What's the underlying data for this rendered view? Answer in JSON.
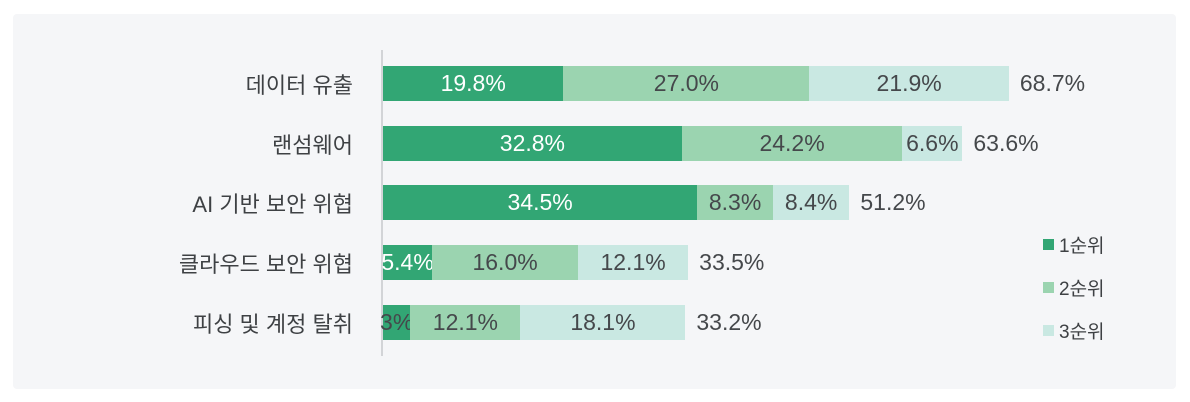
{
  "chart_data": {
    "type": "bar",
    "subtype": "horizontal-stacked",
    "categories": [
      "데이터 유출",
      "랜섬웨어",
      "AI 기반 보안 위협",
      "클라우드 보안 위협",
      "피싱 및 계정 탈취"
    ],
    "series": [
      {
        "name": "1순위",
        "color": "#32a674",
        "values": [
          19.8,
          32.8,
          34.5,
          5.4,
          3.0
        ],
        "labels": [
          "19.8%",
          "32.8%",
          "34.5%",
          "5.4%",
          "3%"
        ]
      },
      {
        "name": "2순위",
        "color": "#9bd4b0",
        "values": [
          27.0,
          24.2,
          8.3,
          16.0,
          12.1
        ],
        "labels": [
          "27.0%",
          "24.2%",
          "8.3%",
          "16.0%",
          "12.1%"
        ]
      },
      {
        "name": "3순위",
        "color": "#c9e8e2",
        "values": [
          21.9,
          6.6,
          8.4,
          12.1,
          18.1
        ],
        "labels": [
          "21.9%",
          "6.6%",
          "8.4%",
          "12.1%",
          "18.1%"
        ]
      }
    ],
    "totals": [
      68.7,
      63.6,
      51.2,
      33.5,
      33.2
    ],
    "total_labels": [
      "68.7%",
      "63.6%",
      "51.2%",
      "33.5%",
      "33.2%"
    ],
    "title": "",
    "xlabel": "",
    "ylabel": "",
    "xlim": [
      0,
      100
    ],
    "grid": false,
    "legend_position": "right",
    "colors": {
      "card_background": "#f5f6f8",
      "page_background": "#ffffff",
      "axis_line": "#d2d4d7",
      "label_text": "#3e4144",
      "value_text_dark": "#45484b",
      "value_text_light": "#ffffff"
    }
  }
}
